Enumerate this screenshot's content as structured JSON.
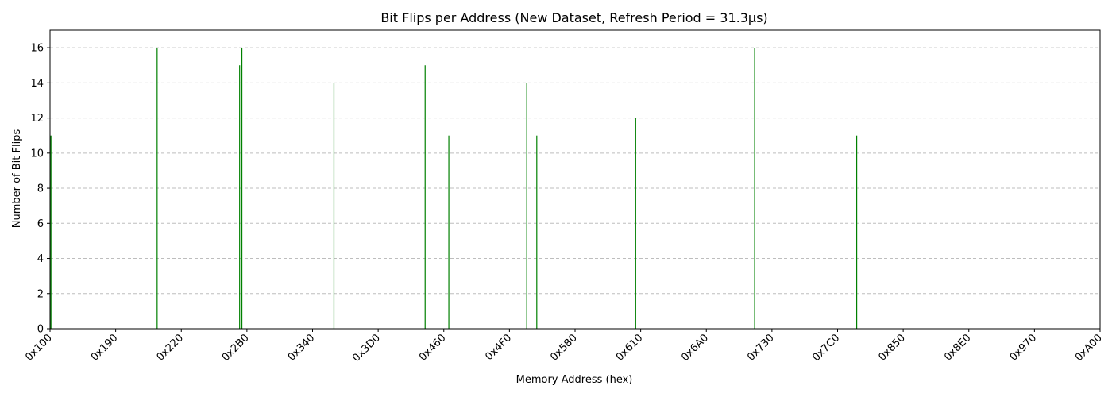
{
  "chart_data": {
    "type": "bar",
    "title": "Bit Flips per Address (New Dataset, Refresh Period = 31.3µs)",
    "xlabel": "Memory Address (hex)",
    "ylabel": "Number of Bit Flips",
    "x_scale": "linear (hexadecimal addresses)",
    "xlim": [
      "0x100",
      "0xA00"
    ],
    "ylim": [
      0,
      17
    ],
    "x_ticks": [
      "0x100",
      "0x190",
      "0x220",
      "0x2B0",
      "0x340",
      "0x3D0",
      "0x460",
      "0x4F0",
      "0x580",
      "0x610",
      "0x6A0",
      "0x730",
      "0x7C0",
      "0x850",
      "0x8E0",
      "0x970",
      "0xA00"
    ],
    "y_ticks": [
      0,
      2,
      4,
      6,
      8,
      10,
      12,
      14,
      16
    ],
    "grid": "y-axis dashed",
    "bar_color": "#008000",
    "points": [
      {
        "x": "0x102",
        "value": 11
      },
      {
        "x": "0x1EB",
        "value": 16
      },
      {
        "x": "0x2A0",
        "value": 15
      },
      {
        "x": "0x2A5",
        "value": 16
      },
      {
        "x": "0x36F",
        "value": 14
      },
      {
        "x": "0x437",
        "value": 15
      },
      {
        "x": "0x46B",
        "value": 11
      },
      {
        "x": "0x516",
        "value": 14
      },
      {
        "x": "0x52C",
        "value": 11
      },
      {
        "x": "0x605",
        "value": 12
      },
      {
        "x": "0x70A",
        "value": 16
      },
      {
        "x": "0x7EA",
        "value": 11
      }
    ]
  }
}
